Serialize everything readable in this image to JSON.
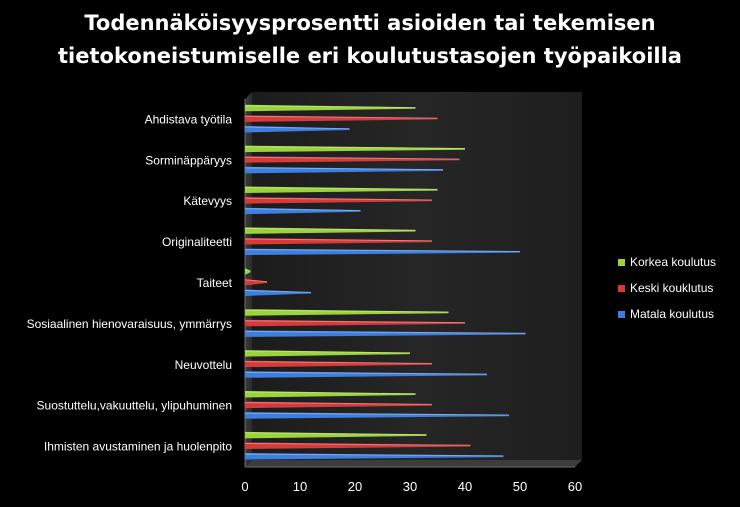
{
  "chart_data": {
    "type": "bar",
    "orientation": "horizontal",
    "title_lines": [
      "Todennäköisyysprosentti asioiden tai tekemisen",
      "tietokoneistumiselle eri koulutustasojen työpaikoilla"
    ],
    "categories": [
      "Ahdistava työtila",
      "Sorminäppäryys",
      "Kätevyys",
      "Originaliteetti",
      "Taiteet",
      "Sosiaalinen hienovaraisuus, ymmärrys",
      "Neuvottelu",
      "Suostuttelu,vakuuttelu, ylipuhuminen",
      "Ihmisten avustaminen ja huolenpito"
    ],
    "series": [
      {
        "name": "Korkea koulutus",
        "color": "#9bd33a",
        "values": [
          31,
          40,
          35,
          31,
          1,
          37,
          30,
          31,
          33
        ]
      },
      {
        "name": "Keski kouklutus",
        "color": "#d83a3a",
        "values": [
          35,
          39,
          34,
          34,
          4,
          40,
          34,
          34,
          41
        ]
      },
      {
        "name": "Matala koulutus",
        "color": "#3d7fe0",
        "values": [
          19,
          36,
          21,
          50,
          12,
          51,
          44,
          48,
          47
        ]
      }
    ],
    "xlim": [
      0,
      60
    ],
    "x_ticks": [
      "0",
      "10",
      "20",
      "30",
      "40",
      "50",
      "60"
    ],
    "grid": false,
    "legend_position": "right"
  }
}
